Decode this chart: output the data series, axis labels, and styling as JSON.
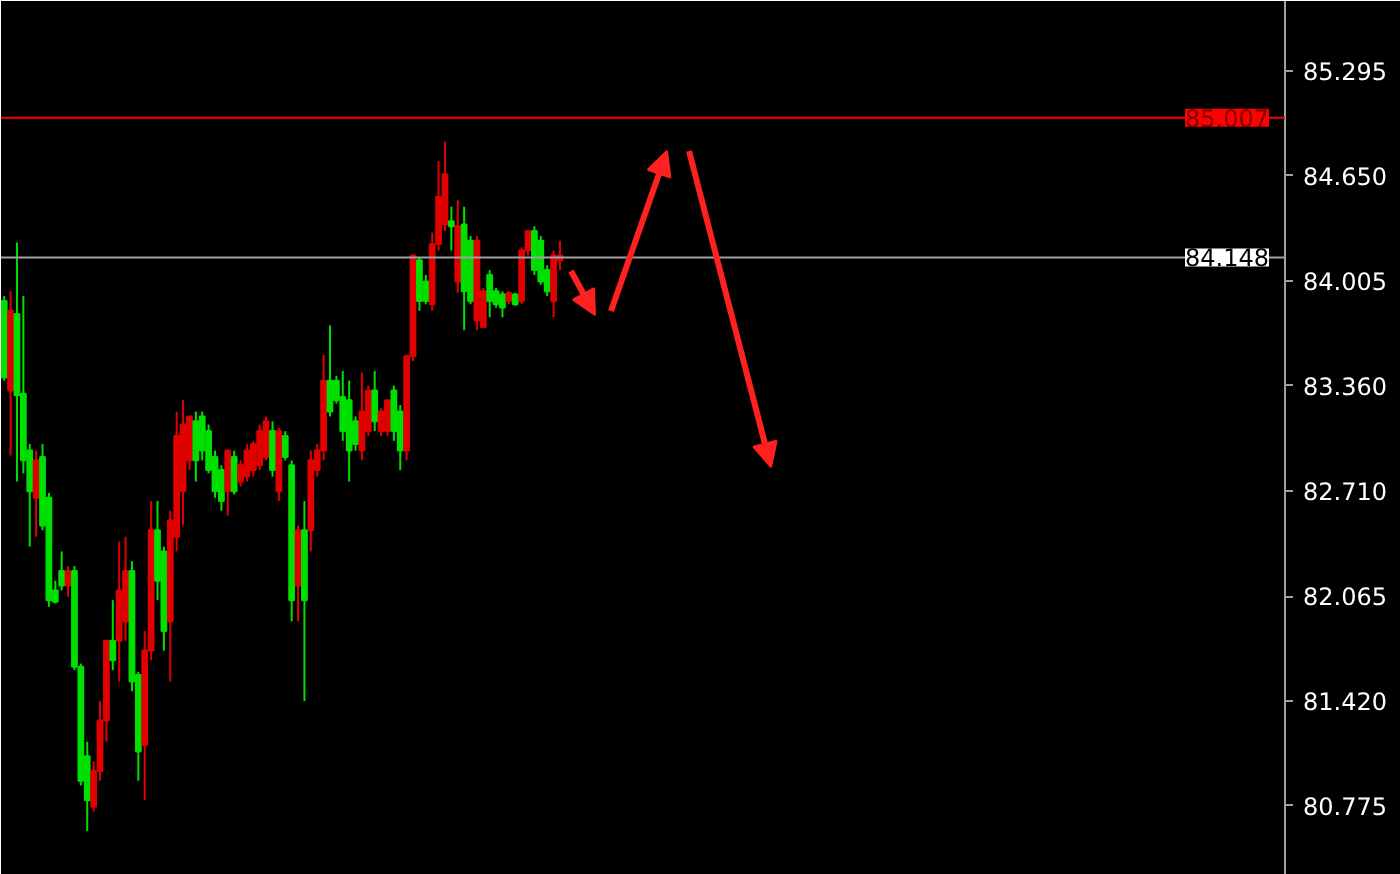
{
  "chart_data": {
    "type": "candlestick",
    "categories": [
      null,
      null,
      null,
      null,
      null,
      null,
      null,
      null,
      null,
      null,
      null,
      null,
      null,
      null,
      null,
      null,
      null,
      null,
      null,
      null,
      null,
      null,
      null,
      null,
      null,
      null,
      null,
      null,
      null,
      null,
      null,
      null,
      null,
      null,
      null,
      null,
      null,
      null,
      null,
      null,
      null,
      null,
      null,
      null,
      null,
      null,
      null,
      null,
      null,
      null,
      null,
      null,
      null,
      null,
      null,
      null,
      null,
      null,
      null,
      null,
      null,
      null,
      null,
      null,
      null,
      null,
      null,
      null,
      null,
      null,
      null,
      null,
      null,
      null,
      null,
      null,
      null,
      null,
      null,
      null,
      null,
      null,
      null,
      null,
      null,
      null,
      null,
      null,
      null,
      null,
      null,
      null,
      null,
      null,
      null,
      null,
      null,
      null,
      null,
      null,
      null,
      null,
      null,
      null,
      null,
      null,
      null,
      null,
      null,
      null,
      null,
      null,
      null,
      null,
      null,
      null,
      null,
      null,
      null,
      null,
      null,
      null,
      null,
      null,
      null,
      null,
      null,
      null,
      null,
      null,
      null,
      null,
      null,
      null,
      null,
      null,
      null,
      null,
      null,
      null,
      null,
      null,
      null,
      null,
      null,
      null,
      null,
      null,
      null,
      null,
      null,
      null,
      null,
      null,
      null,
      null,
      null,
      null,
      null,
      null,
      null,
      null,
      null,
      null,
      null,
      null,
      null,
      null,
      null,
      null,
      null,
      null,
      null,
      null,
      null,
      null,
      null,
      null,
      null,
      null,
      null,
      null,
      null,
      null,
      null,
      null,
      null,
      null,
      null,
      null,
      null,
      null,
      null,
      null,
      null,
      null,
      null,
      null,
      null,
      null,
      null
    ],
    "ohlc": [
      [
        83.88,
        83.91,
        83.39,
        83.41
      ],
      [
        83.33,
        83.94,
        82.93,
        83.82
      ],
      [
        83.8,
        84.24,
        82.77,
        83.3
      ],
      [
        83.31,
        83.91,
        82.82,
        82.9
      ],
      [
        82.96,
        83.0,
        82.37,
        82.71
      ],
      [
        82.67,
        82.96,
        82.43,
        82.9
      ],
      [
        82.92,
        83.0,
        82.47,
        82.5
      ],
      [
        82.67,
        82.7,
        82.0,
        82.04
      ],
      [
        82.1,
        82.16,
        82.02,
        82.03
      ],
      [
        82.22,
        82.34,
        82.1,
        82.13
      ],
      [
        82.13,
        82.25,
        82.06,
        82.22
      ],
      [
        82.22,
        82.25,
        81.61,
        81.63
      ],
      [
        81.63,
        81.65,
        80.9,
        80.93
      ],
      [
        81.08,
        81.17,
        80.62,
        80.81
      ],
      [
        80.77,
        81.05,
        80.74,
        80.99
      ],
      [
        80.99,
        81.42,
        80.93,
        81.3
      ],
      [
        81.3,
        81.79,
        81.17,
        81.79
      ],
      [
        81.79,
        82.04,
        81.61,
        81.67
      ],
      [
        81.79,
        82.4,
        81.54,
        82.1
      ],
      [
        81.91,
        82.43,
        81.79,
        82.22
      ],
      [
        82.22,
        82.28,
        81.48,
        81.54
      ],
      [
        81.58,
        81.6,
        80.93,
        81.11
      ],
      [
        81.15,
        81.85,
        80.81,
        81.73
      ],
      [
        81.73,
        82.65,
        81.67,
        82.47
      ],
      [
        82.47,
        82.65,
        82.04,
        82.16
      ],
      [
        82.34,
        82.37,
        81.73,
        81.85
      ],
      [
        81.91,
        82.59,
        81.54,
        82.53
      ],
      [
        82.43,
        83.2,
        82.34,
        83.05
      ],
      [
        82.71,
        83.27,
        82.5,
        83.12
      ],
      [
        82.9,
        83.17,
        82.84,
        83.17
      ],
      [
        83.14,
        83.2,
        82.77,
        82.9
      ],
      [
        83.17,
        83.2,
        82.9,
        82.96
      ],
      [
        83.08,
        83.12,
        82.82,
        82.84
      ],
      [
        82.92,
        82.96,
        82.67,
        82.71
      ],
      [
        82.84,
        82.87,
        82.59,
        82.65
      ],
      [
        82.71,
        82.96,
        82.56,
        82.96
      ],
      [
        82.92,
        82.96,
        82.69,
        82.71
      ],
      [
        82.77,
        82.9,
        82.74,
        82.87
      ],
      [
        82.8,
        83.0,
        82.77,
        82.96
      ],
      [
        82.84,
        83.02,
        82.8,
        83.0
      ],
      [
        82.87,
        83.12,
        82.84,
        83.08
      ],
      [
        82.92,
        83.17,
        82.9,
        83.14
      ],
      [
        83.08,
        83.14,
        82.8,
        82.84
      ],
      [
        82.71,
        83.1,
        82.65,
        83.08
      ],
      [
        83.05,
        83.08,
        82.9,
        82.92
      ],
      [
        82.87,
        82.9,
        81.91,
        82.04
      ],
      [
        82.13,
        82.5,
        81.91,
        82.47
      ],
      [
        82.47,
        82.65,
        81.42,
        82.04
      ],
      [
        82.47,
        82.96,
        82.34,
        82.9
      ],
      [
        82.84,
        83.0,
        82.8,
        82.96
      ],
      [
        82.96,
        83.55,
        82.9,
        83.39
      ],
      [
        83.39,
        83.73,
        83.17,
        83.2
      ],
      [
        83.39,
        83.42,
        83.25,
        83.27
      ],
      [
        83.29,
        83.45,
        83.02,
        83.08
      ],
      [
        83.27,
        83.39,
        82.77,
        82.96
      ],
      [
        83.14,
        83.17,
        82.96,
        83.0
      ],
      [
        82.96,
        83.44,
        82.9,
        83.2
      ],
      [
        83.08,
        83.36,
        83.05,
        83.33
      ],
      [
        83.33,
        83.45,
        83.08,
        83.14
      ],
      [
        83.08,
        83.22,
        83.05,
        83.2
      ],
      [
        83.08,
        83.27,
        83.05,
        83.27
      ],
      [
        83.33,
        83.36,
        83.02,
        83.08
      ],
      [
        83.2,
        83.24,
        82.84,
        82.96
      ],
      [
        82.96,
        83.55,
        82.9,
        83.54
      ],
      [
        83.54,
        84.16,
        83.51,
        84.16
      ],
      [
        84.13,
        84.15,
        83.82,
        83.88
      ],
      [
        84.0,
        84.04,
        83.86,
        83.88
      ],
      [
        83.86,
        84.3,
        83.82,
        84.23
      ],
      [
        84.23,
        84.74,
        84.19,
        84.52
      ],
      [
        84.35,
        84.86,
        84.31,
        84.66
      ],
      [
        84.37,
        84.46,
        84.19,
        84.34
      ],
      [
        84.0,
        84.5,
        83.93,
        84.34
      ],
      [
        84.35,
        84.46,
        83.7,
        83.94
      ],
      [
        84.25,
        84.28,
        83.86,
        83.88
      ],
      [
        83.76,
        84.28,
        83.7,
        84.25
      ],
      [
        83.72,
        83.96,
        83.72,
        83.94
      ],
      [
        84.04,
        84.07,
        83.78,
        83.88
      ],
      [
        83.94,
        83.96,
        83.84,
        83.86
      ],
      [
        83.92,
        83.94,
        83.78,
        83.84
      ],
      [
        83.88,
        83.94,
        83.86,
        83.93
      ],
      [
        83.92,
        83.93,
        83.85,
        83.86
      ],
      [
        83.88,
        84.21,
        83.86,
        84.19
      ],
      [
        84.19,
        84.31,
        84.16,
        84.31
      ],
      [
        84.31,
        84.34,
        84.04,
        84.07
      ],
      [
        84.25,
        84.28,
        83.98,
        84.0
      ],
      [
        84.07,
        84.1,
        83.91,
        83.94
      ],
      [
        83.88,
        84.19,
        83.78,
        84.16
      ],
      [
        84.13,
        84.25,
        84.07,
        84.16
      ],
      null,
      null,
      null,
      null,
      null,
      null,
      null,
      null,
      null,
      null,
      null,
      null,
      null,
      null,
      null,
      null,
      null,
      null,
      null,
      null,
      null,
      null,
      null,
      null,
      null,
      null,
      null,
      null,
      null,
      null,
      null,
      null,
      null,
      null,
      null,
      null,
      null,
      null,
      null,
      null,
      null,
      null,
      null,
      null,
      null,
      null,
      null,
      null,
      null,
      null,
      null,
      null,
      null,
      null,
      null,
      null,
      null,
      null,
      null,
      null,
      null,
      null,
      null,
      null,
      null,
      null,
      null,
      null,
      null,
      null,
      null,
      null,
      null,
      null,
      null,
      null,
      null,
      null,
      null,
      null,
      null,
      null,
      null,
      null,
      null,
      null,
      null,
      null,
      null,
      null,
      null,
      null,
      null,
      null,
      null,
      null,
      null,
      null,
      null,
      null,
      null,
      null,
      null,
      null,
      null,
      null,
      null,
      null,
      null,
      null,
      null,
      null,
      null
    ],
    "colors": [
      "#00e000",
      "#e00000",
      "#00e000",
      "#00e000",
      "#00e000",
      "#e00000",
      "#00e000",
      "#00e000",
      "#00e000",
      "#00e000",
      "#e00000",
      "#00e000",
      "#00e000",
      "#00e000",
      "#e00000",
      "#e00000",
      "#e00000",
      "#00e000",
      "#e00000",
      "#e00000",
      "#00e000",
      "#00e000",
      "#e00000",
      "#e00000",
      "#00e000",
      "#00e000",
      "#e00000",
      "#e00000",
      "#e00000",
      "#e00000",
      "#00e000",
      "#00e000",
      "#00e000",
      "#00e000",
      "#00e000",
      "#e00000",
      "#00e000",
      "#e00000",
      "#e00000",
      "#e00000",
      "#e00000",
      "#e00000",
      "#00e000",
      "#e00000",
      "#00e000",
      "#00e000",
      "#e00000",
      "#00e000",
      "#e00000",
      "#e00000",
      "#e00000",
      "#00e000",
      "#00e000",
      "#00e000",
      "#00e000",
      "#00e000",
      "#e00000",
      "#e00000",
      "#00e000",
      "#e00000",
      "#e00000",
      "#00e000",
      "#00e000",
      "#e00000",
      "#e00000",
      "#00e000",
      "#00e000",
      "#e00000",
      "#e00000",
      "#e00000",
      "#00e000",
      "#e00000",
      "#00e000",
      "#00e000",
      "#e00000",
      "#e00000",
      "#00e000",
      "#00e000",
      "#00e000",
      "#e00000",
      "#00e000",
      "#e00000",
      "#e00000",
      "#00e000",
      "#00e000",
      "#00e000",
      "#e00000",
      "#e00000",
      null,
      null,
      null,
      null,
      null,
      null,
      null,
      null,
      null,
      null,
      null,
      null,
      null,
      null,
      null,
      null,
      null,
      null,
      null,
      null,
      null,
      null,
      null,
      null,
      null,
      null,
      null,
      null,
      null,
      null,
      null,
      null,
      null,
      null,
      null,
      null,
      null,
      null,
      null,
      null,
      null,
      null,
      null,
      null,
      null,
      null,
      null,
      null,
      null,
      null,
      null,
      null,
      null,
      null,
      null,
      null,
      null,
      null,
      null,
      null,
      null,
      null,
      null,
      null,
      null,
      null,
      null,
      null,
      null,
      null,
      null,
      null,
      null,
      null,
      null,
      null,
      null,
      null,
      null,
      null,
      null,
      null,
      null,
      null,
      null,
      null,
      null,
      null,
      null,
      null,
      null,
      null,
      null,
      null,
      null,
      null,
      null,
      null,
      null,
      null,
      null,
      null,
      null,
      null,
      null,
      null,
      null,
      null,
      null,
      null,
      null,
      null,
      null
    ],
    "ylim": [
      80.35,
      85.725
    ],
    "yticks": [
      85.295,
      {
        "value": 84.65,
        "label": "84.650"
      },
      84.005,
      {
        "value": 83.36,
        "label": "83.360"
      },
      {
        "value": 82.71,
        "label": "82.710"
      },
      82.065,
      {
        "value": 81.42,
        "label": "81.420"
      },
      80.775
    ],
    "ref_lines": [
      {
        "axis": "y",
        "value": 85.007,
        "label": "85.007",
        "color": "#ff0000"
      },
      {
        "axis": "y",
        "value": 84.148,
        "label": "84.148",
        "color": "#a0a0a0"
      }
    ],
    "tick_labels": "y",
    "grid": false
  }
}
